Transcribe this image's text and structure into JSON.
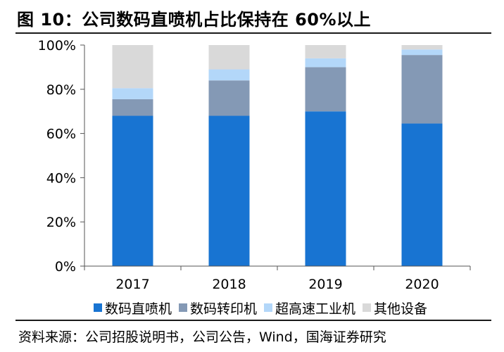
{
  "header": {
    "title": "图 10：公司数码直喷机占比保持在 60%以上"
  },
  "footer": {
    "source": "资料来源：公司招股说明书，公司公告，Wind，国海证券研究"
  },
  "colors": {
    "series": [
      "#1874d2",
      "#8499b5",
      "#b3d7f9",
      "#d9d9d9"
    ],
    "axis": "#555555"
  },
  "chart_data": {
    "type": "bar",
    "stacked": true,
    "categories": [
      "2017",
      "2018",
      "2019",
      "2020"
    ],
    "series": [
      {
        "name": "数码直喷机",
        "values": [
          68,
          68,
          70,
          64.5
        ]
      },
      {
        "name": "数码转印机",
        "values": [
          7.5,
          16,
          20,
          31
        ]
      },
      {
        "name": "超高速工业机",
        "values": [
          5,
          5,
          4,
          2.5
        ]
      },
      {
        "name": "其他设备",
        "values": [
          19.5,
          11,
          6,
          2
        ]
      }
    ],
    "yticks": [
      "0%",
      "20%",
      "40%",
      "60%",
      "80%",
      "100%"
    ],
    "ylim": [
      0,
      100
    ],
    "grid": false,
    "legend": "bottom"
  }
}
